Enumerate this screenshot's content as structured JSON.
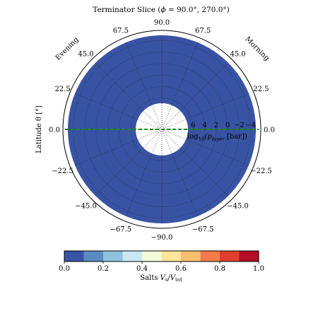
{
  "chart_data": {
    "type": "polar-heatmap",
    "title_prefix": "Terminator Slice (",
    "title_phi": "ϕ",
    "title_suffix": " = 90.0°, 270.0°)",
    "radial_axis_label_prefix": "log",
    "radial_axis_label_sub": "10",
    "radial_axis_label_p": "(p",
    "radial_axis_label_p_sub": "layer",
    "radial_axis_label_suffix": " [bar])",
    "latitude_axis_label": "Latitude θ [°]",
    "side_labels": {
      "left": "Evening",
      "right": "Morning"
    },
    "latitude_ticks": [
      "90.0",
      "67.5",
      "45.0",
      "22.5",
      "0.0",
      "−22.5",
      "−45.0",
      "−67.5",
      "−90.0"
    ],
    "latitude_tick_values": [
      90,
      67.5,
      45,
      22.5,
      0,
      -22.5,
      -45,
      -67.5,
      -90
    ],
    "pressure_ticks": [
      "6",
      "4",
      "2",
      "0",
      "−2",
      "−4"
    ],
    "pressure_tick_values": [
      6,
      4,
      2,
      0,
      -2,
      -4
    ],
    "pressure_range_log10_bar": [
      6.9,
      -4.9
    ],
    "field_value": 0.0,
    "field_color": "#3953a4",
    "terminator_line_color": "#1a8c1a",
    "colorbar": {
      "label_prefix": "Salts ",
      "label_var": "V",
      "label_var_sub": "s",
      "label_div": "/",
      "label_den": "V",
      "label_den_sub": "tot",
      "range": [
        0.0,
        1.0
      ],
      "ticks": [
        "0.0",
        "0.2",
        "0.4",
        "0.6",
        "0.8",
        "1.0"
      ],
      "tick_values": [
        0.0,
        0.2,
        0.4,
        0.6,
        0.8,
        1.0
      ],
      "colors": [
        "#3953a4",
        "#5b8ac0",
        "#8fc1dd",
        "#c8e8f2",
        "#f3fad8",
        "#fde59a",
        "#fcbd6f",
        "#f67b4a",
        "#de3f2e",
        "#b40e28"
      ]
    }
  }
}
